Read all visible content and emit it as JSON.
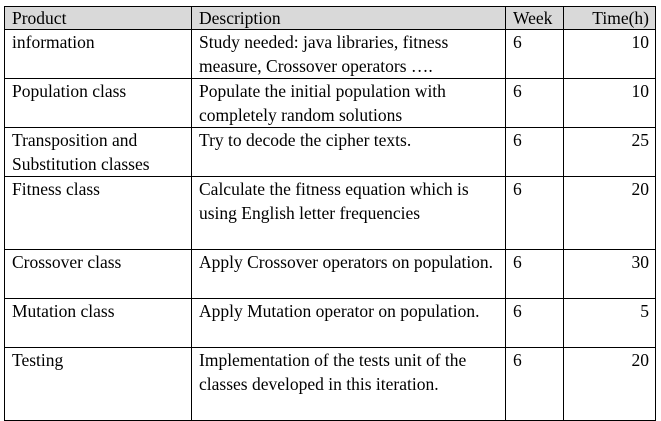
{
  "table": {
    "headers": {
      "product": "Product",
      "description": "Description",
      "week": "Week",
      "time": "Time(h)"
    },
    "rows": [
      {
        "product": "information",
        "description": "Study needed: java libraries, fitness measure, Crossover operators ….",
        "week": "6",
        "time": "10"
      },
      {
        "product": "Population class",
        "description": "Populate the initial population with completely random solutions",
        "week": "6",
        "time": "10"
      },
      {
        "product": "Transposition and Substitution classes",
        "description": "Try to decode the cipher texts.",
        "week": "6",
        "time": "25"
      },
      {
        "product": "Fitness class",
        "description": "Calculate the fitness equation which is using English letter frequencies",
        "week": "6",
        "time": "20"
      },
      {
        "product": "Crossover class",
        "description": "Apply Crossover operators on population.",
        "week": "6",
        "time": "30"
      },
      {
        "product": "Mutation class",
        "description": "Apply Mutation operator on population.",
        "week": "6",
        "time": "5"
      },
      {
        "product": "Testing",
        "description": "Implementation of the tests unit of the classes developed in this iteration.",
        "week": "6",
        "time": "20"
      }
    ]
  }
}
